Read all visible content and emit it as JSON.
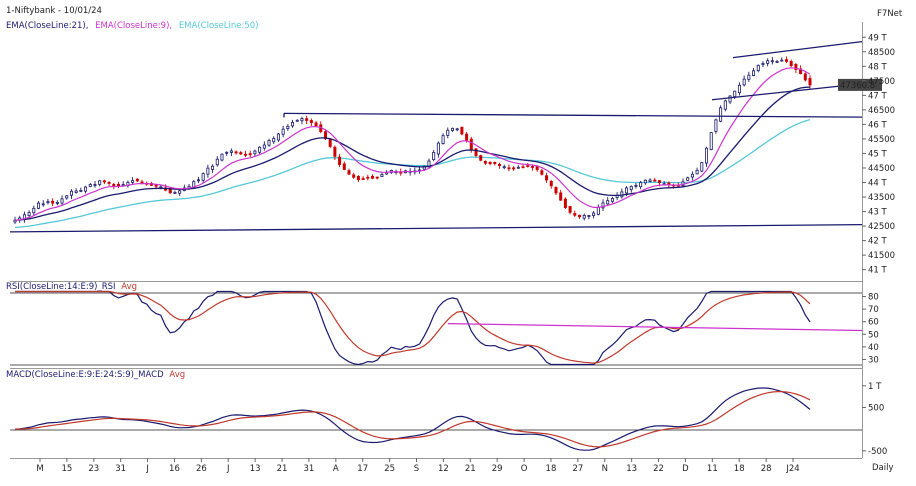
{
  "header": {
    "title": "1-Niftybank - 10/01/24",
    "indicators": [
      {
        "text": "EMA(CloseLine:21),",
        "color": "#1a1a6e"
      },
      {
        "text": "EMA(CloseLine:9),",
        "color": "#cc33cc"
      },
      {
        "text": "EMA(CloseLine:50)",
        "color": "#55c8d8"
      }
    ],
    "top_right": "F7Net",
    "bottom_right": "Daily"
  },
  "rsi_header": {
    "prefix": "RSI(CloseLine:14:E:9)_RSI",
    "avg": "Avg"
  },
  "macd_header": {
    "prefix": "MACD(CloseLine:E:9:E:24:S:9)_MACD",
    "avg": "Avg"
  },
  "colors": {
    "up": "#1a1a6e",
    "down": "#cc0000",
    "ema9": "#cc33cc",
    "ema21": "#1a1a6e",
    "ema50": "#55c8d8",
    "rsi": "#1a1a6e",
    "avg": "#c0392b",
    "trend": "#1a1a6e",
    "support_magenta": "#cc33cc",
    "price_tag_bg": "#444444"
  },
  "chart_data": [
    {
      "type": "candlestick",
      "title": "1-Niftybank - 10/01/24",
      "y_ticks": [
        49000,
        48500,
        48000,
        47500,
        47000,
        46500,
        46000,
        45500,
        45000,
        44500,
        44000,
        43500,
        43000,
        42500,
        42000,
        41500,
        41000
      ],
      "y_tick_labels": [
        "49 T",
        "48500",
        "48 T",
        "47500",
        "47 T",
        "46500",
        "46 T",
        "45500",
        "45 T",
        "44500",
        "44 T",
        "43500",
        "43 T",
        "42500",
        "42 T",
        "41500",
        "41 T"
      ],
      "ylim": [
        40850,
        49250
      ],
      "last_price_label": "47360.8",
      "last_price": 47360,
      "x_ticks": [
        "M",
        "15",
        "23",
        "31",
        "J",
        "16",
        "26",
        "J",
        "13",
        "21",
        "31",
        "A",
        "17",
        "25",
        "S",
        "12",
        "21",
        "29",
        "O",
        "18",
        "27",
        "N",
        "13",
        "22",
        "D",
        "11",
        "18",
        "28",
        "J24"
      ],
      "x_tick_labels": [
        "M",
        "15",
        "23",
        "31",
        "J",
        "16",
        "26",
        "J",
        "13",
        "21",
        "31",
        "A",
        "17",
        "25",
        "S",
        "12",
        "21",
        "29",
        "O",
        "18",
        "27",
        "N",
        "13",
        "22",
        "D",
        "11",
        "18",
        "28",
        "J24"
      ],
      "n_bars": 170,
      "closes": [
        42702,
        42780,
        42890,
        42965,
        43111,
        43292,
        43264,
        43345,
        43289,
        43316,
        43436,
        43544,
        43700,
        43709,
        43730,
        43844,
        43932,
        43927,
        44058,
        44037,
        43985,
        43890,
        43866,
        43931,
        44008,
        44066,
        44055,
        43982,
        43962,
        43902,
        43867,
        43851,
        43734,
        43646,
        43659,
        43715,
        43811,
        43869,
        44028,
        44093,
        44305,
        44495,
        44563,
        44801,
        44975,
        45040,
        45085,
        45019,
        44983,
        44963,
        44975,
        45082,
        45214,
        45290,
        45449,
        45512,
        45670,
        45836,
        45933,
        46070,
        46144,
        46203,
        46136,
        46060,
        45950,
        45754,
        45510,
        45241,
        44902,
        44616,
        44450,
        44289,
        44180,
        44096,
        44130,
        44165,
        44146,
        44181,
        44277,
        44339,
        44416,
        44375,
        44350,
        44400,
        44385,
        44399,
        44433,
        44562,
        44739,
        45034,
        45357,
        45612,
        45798,
        45866,
        45847,
        45671,
        45452,
        45150,
        44930,
        44766,
        44664,
        44648,
        44652,
        44582,
        44544,
        44481,
        44501,
        44524,
        44541,
        44581,
        44525,
        44442,
        44283,
        44086,
        43887,
        43640,
        43392,
        43137,
        42973,
        42872,
        42822,
        42863,
        42864,
        42949,
        43142,
        43296,
        43375,
        43452,
        43549,
        43676,
        43812,
        43863,
        43902,
        43998,
        44078,
        44085,
        44076,
        43996,
        43959,
        43920,
        43888,
        43912,
        44025,
        44164,
        44283,
        44418,
        44685,
        45180,
        45717,
        46155,
        46571,
        46809,
        46978,
        47144,
        47349,
        47559,
        47694,
        47846,
        48032,
        48099,
        48190,
        48191,
        48170,
        48214,
        48168,
        48021,
        47891,
        47746,
        47530,
        47360
      ]
    },
    {
      "type": "line",
      "title": "RSI(CloseLine:14:E:9)_RSI Avg",
      "series": [
        {
          "name": "RSI(CloseLine:14:E:9)_RSI"
        },
        {
          "name": "Avg"
        }
      ],
      "y_ticks": [
        80,
        70,
        60,
        50,
        40,
        30
      ],
      "y_tick_labels": [
        "80",
        "70",
        "60",
        "50",
        "40",
        "30"
      ],
      "ylim": [
        24,
        86
      ]
    },
    {
      "type": "line",
      "title": "MACD(CloseLine:E:9:E:24:S:9)_MACD Avg",
      "series": [
        {
          "name": "MACD(CloseLine:E:9:E:24:S:9)_MACD"
        },
        {
          "name": "Avg"
        }
      ],
      "y_ticks": [
        1000,
        500,
        -500
      ],
      "y_tick_labels": [
        "1 T",
        "500",
        "-500"
      ],
      "ylim": [
        -620,
        1180
      ]
    }
  ]
}
